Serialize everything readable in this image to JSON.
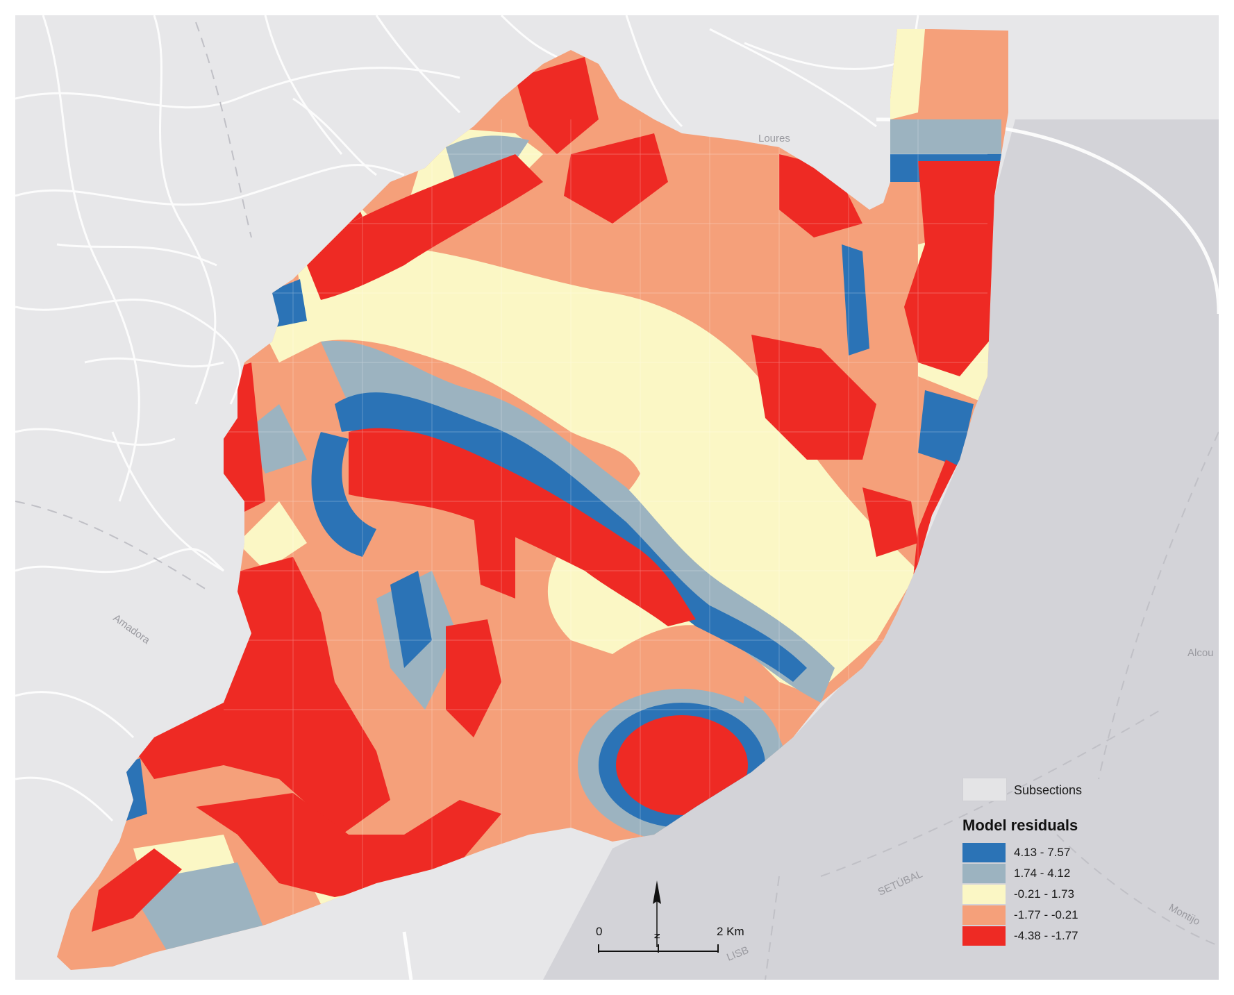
{
  "map": {
    "place_labels": [
      "Loures",
      "Amadora",
      "SETÚBAL",
      "Alcou",
      "Montijo",
      "LISB"
    ],
    "colors": {
      "background": "#e7e7e9",
      "water": "#d3d3d8",
      "roads": "#ffffff",
      "dark_blue": "#2b73b6",
      "grey_blue": "#9cb3c0",
      "pale_yellow": "#fbf7c5",
      "salmon": "#f5a07a",
      "red": "#ee2a24"
    }
  },
  "legend": {
    "subsections_label": "Subsections",
    "title": "Model residuals",
    "classes": [
      {
        "label": "4.13 - 7.57",
        "color": "#2b73b6"
      },
      {
        "label": "1.74 - 4.12",
        "color": "#9cb3c0"
      },
      {
        "label": "-0.21 - 1.73",
        "color": "#fbf7c5"
      },
      {
        "label": "-1.77 - -0.21",
        "color": "#f5a07a"
      },
      {
        "label": "-4.38 - -1.77",
        "color": "#ee2a24"
      }
    ]
  },
  "scale_bar": {
    "start_label": "0",
    "end_label": "2 Km"
  },
  "north_arrow": {
    "label": "N"
  }
}
